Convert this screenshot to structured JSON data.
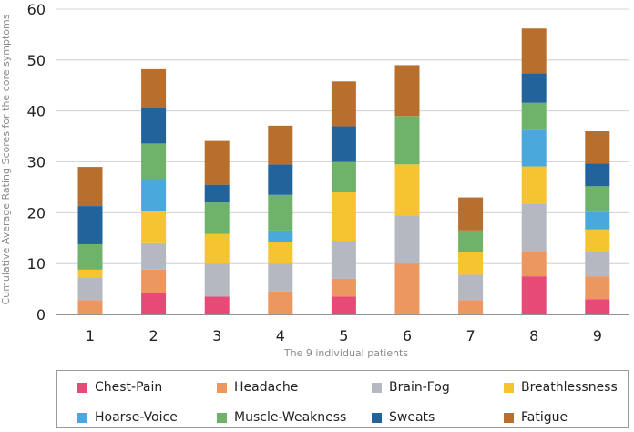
{
  "chart_data": {
    "type": "bar",
    "stacked": true,
    "xlabel": "The 9 individual patients",
    "ylabel": "Cumulative Average Rating Scores for the core symptoms",
    "ylim": [
      0,
      60
    ],
    "yticks": [
      0,
      10,
      20,
      30,
      40,
      50,
      60
    ],
    "categories": [
      "1",
      "2",
      "3",
      "4",
      "5",
      "6",
      "7",
      "8",
      "9"
    ],
    "grid": "horizontal",
    "legend_position": "bottom",
    "series": [
      {
        "name": "Chest-Pain",
        "color": "#e84a78",
        "values": [
          0,
          4.3,
          3.5,
          0,
          3.5,
          0,
          0,
          7.5,
          3.0
        ]
      },
      {
        "name": "Headache",
        "color": "#ec9660",
        "values": [
          2.8,
          4.5,
          0,
          4.5,
          3.5,
          10.0,
          2.8,
          5.0,
          4.5
        ]
      },
      {
        "name": "Brain-Fog",
        "color": "#b5b8c0",
        "values": [
          4.5,
          5.2,
          6.5,
          5.5,
          7.5,
          9.5,
          5.0,
          9.3,
          5.0
        ]
      },
      {
        "name": "Breathlessness",
        "color": "#f6c431",
        "values": [
          1.5,
          6.3,
          5.8,
          4.2,
          9.5,
          10.0,
          4.5,
          7.3,
          4.2
        ]
      },
      {
        "name": "Hoarse-Voice",
        "color": "#4ba8dc",
        "values": [
          0,
          6.3,
          0,
          2.3,
          0,
          0,
          0,
          7.2,
          3.5
        ]
      },
      {
        "name": "Muscle-Weakness",
        "color": "#6fb36a",
        "values": [
          5.0,
          7.0,
          6.2,
          7.0,
          6.0,
          9.5,
          4.2,
          5.3,
          5.0
        ]
      },
      {
        "name": "Sweats",
        "color": "#21639a",
        "values": [
          7.5,
          7.0,
          3.5,
          6.0,
          7.0,
          0,
          0,
          5.8,
          4.5
        ]
      },
      {
        "name": "Fatigue",
        "color": "#b86f2e",
        "values": [
          7.7,
          7.6,
          8.6,
          7.6,
          8.8,
          10.0,
          6.5,
          8.8,
          6.3
        ]
      }
    ]
  }
}
